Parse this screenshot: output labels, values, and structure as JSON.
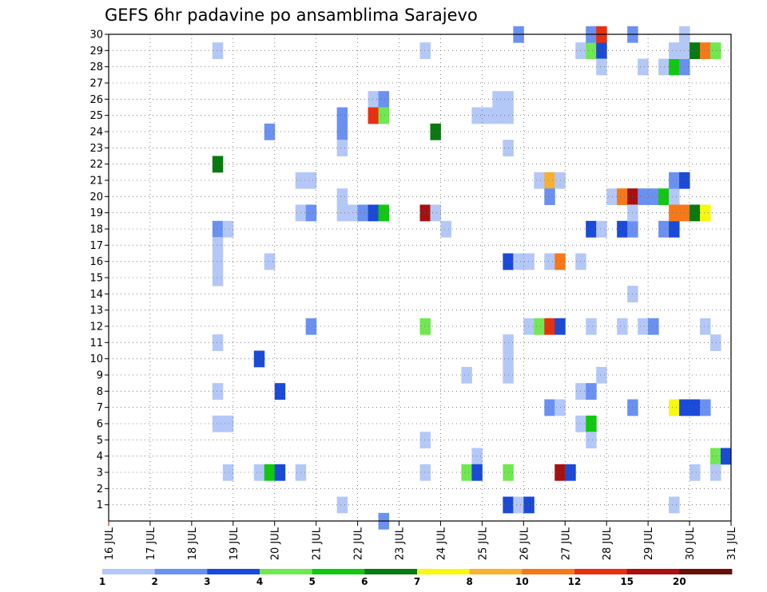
{
  "chart_data": {
    "type": "heatmap",
    "title": "GEFS 6hr padavine po ansamblima Sarajevo",
    "xlabel": "",
    "ylabel": "",
    "x_tick_labels": [
      "16 JUL",
      "17 JUL",
      "18 JUL",
      "19 JUL",
      "20 JUL",
      "21 JUL",
      "22 JUL",
      "23 JUL",
      "24 JUL",
      "25 JUL",
      "26 JUL",
      "27 JUL",
      "28 JUL",
      "29 JUL",
      "30 JUL",
      "31 JUL"
    ],
    "y_tick_labels": [
      "1",
      "2",
      "3",
      "4",
      "5",
      "6",
      "7",
      "8",
      "9",
      "10",
      "11",
      "12",
      "13",
      "14",
      "15",
      "16",
      "17",
      "18",
      "19",
      "20",
      "21",
      "22",
      "23",
      "24",
      "25",
      "26",
      "27",
      "28",
      "29",
      "30"
    ],
    "x_range_days": [
      0,
      15
    ],
    "y_range": [
      0,
      30
    ],
    "grid": true,
    "legend": "colorbar-bottom",
    "colorbar": {
      "labels": [
        "1",
        "2",
        "3",
        "4",
        "5",
        "6",
        "7",
        "8",
        "10",
        "12",
        "15",
        "20"
      ],
      "colors": [
        "#b4c8f8",
        "#6a91f2",
        "#1a4ad8",
        "#70e850",
        "#10c810",
        "#087a10",
        "#f8f810",
        "#f8b030",
        "#f87818",
        "#e83010",
        "#a81010",
        "#681008"
      ]
    },
    "cells": [
      [
        2.5,
        29,
        0
      ],
      [
        2.5,
        18,
        1
      ],
      [
        2.75,
        18,
        0
      ],
      [
        2.5,
        17,
        0
      ],
      [
        2.5,
        16,
        0
      ],
      [
        2.5,
        15,
        0
      ],
      [
        2.5,
        11,
        0
      ],
      [
        2.5,
        8,
        0
      ],
      [
        2.5,
        6,
        0
      ],
      [
        2.75,
        6,
        0
      ],
      [
        2.75,
        3,
        0
      ],
      [
        2.5,
        22,
        5
      ],
      [
        3.75,
        24,
        1
      ],
      [
        3.75,
        16,
        0
      ],
      [
        3.5,
        10,
        2
      ],
      [
        3.5,
        3,
        0
      ],
      [
        3.75,
        3,
        4
      ],
      [
        4.0,
        3,
        2
      ],
      [
        4.0,
        8,
        2
      ],
      [
        4.5,
        21,
        0
      ],
      [
        4.75,
        21,
        0
      ],
      [
        4.5,
        19,
        0
      ],
      [
        4.75,
        19,
        1
      ],
      [
        4.75,
        12,
        1
      ],
      [
        4.5,
        3,
        0
      ],
      [
        5.5,
        25,
        1
      ],
      [
        5.5,
        24,
        1
      ],
      [
        5.5,
        23,
        0
      ],
      [
        5.5,
        20,
        0
      ],
      [
        5.5,
        19,
        0
      ],
      [
        5.75,
        19,
        0
      ],
      [
        6.0,
        19,
        1
      ],
      [
        5.5,
        1,
        0
      ],
      [
        6.25,
        19,
        2
      ],
      [
        6.5,
        19,
        4
      ],
      [
        6.25,
        26,
        0
      ],
      [
        6.5,
        26,
        1
      ],
      [
        6.25,
        25,
        9
      ],
      [
        6.5,
        25,
        3
      ],
      [
        6.5,
        0,
        1
      ],
      [
        7.5,
        29,
        0
      ],
      [
        7.5,
        19,
        10
      ],
      [
        7.75,
        19,
        0
      ],
      [
        7.5,
        12,
        3
      ],
      [
        7.5,
        5,
        0
      ],
      [
        7.5,
        3,
        0
      ],
      [
        7.75,
        24,
        5
      ],
      [
        8.0,
        18,
        0
      ],
      [
        8.5,
        9,
        0
      ],
      [
        8.75,
        4,
        0
      ],
      [
        8.5,
        3,
        3
      ],
      [
        8.75,
        3,
        2
      ],
      [
        8.75,
        25,
        0
      ],
      [
        9.0,
        25,
        0
      ],
      [
        9.25,
        26,
        0
      ],
      [
        9.5,
        26,
        0
      ],
      [
        9.25,
        25,
        0
      ],
      [
        9.5,
        25,
        0
      ],
      [
        9.5,
        23,
        0
      ],
      [
        9.5,
        16,
        2
      ],
      [
        9.75,
        16,
        0
      ],
      [
        9.5,
        11,
        0
      ],
      [
        9.5,
        10,
        0
      ],
      [
        9.5,
        9,
        0
      ],
      [
        9.5,
        3,
        3
      ],
      [
        9.5,
        1,
        2
      ],
      [
        9.75,
        1,
        0
      ],
      [
        10.0,
        1,
        2
      ],
      [
        9.75,
        30,
        1
      ],
      [
        10.0,
        16,
        0
      ],
      [
        10.25,
        21,
        0
      ],
      [
        10.5,
        21,
        7
      ],
      [
        10.75,
        21,
        0
      ],
      [
        10.5,
        20,
        1
      ],
      [
        10.5,
        16,
        0
      ],
      [
        10.75,
        16,
        8
      ],
      [
        10.0,
        12,
        0
      ],
      [
        10.25,
        12,
        3
      ],
      [
        10.5,
        12,
        9
      ],
      [
        10.75,
        12,
        2
      ],
      [
        10.5,
        7,
        1
      ],
      [
        10.75,
        7,
        0
      ],
      [
        10.75,
        3,
        10
      ],
      [
        11.0,
        3,
        2
      ],
      [
        11.25,
        16,
        0
      ],
      [
        11.25,
        29,
        0
      ],
      [
        11.5,
        29,
        3
      ],
      [
        11.75,
        29,
        2
      ],
      [
        11.5,
        30,
        1
      ],
      [
        11.75,
        30,
        9
      ],
      [
        11.75,
        28,
        0
      ],
      [
        11.5,
        18,
        2
      ],
      [
        11.75,
        18,
        0
      ],
      [
        11.5,
        12,
        0
      ],
      [
        11.25,
        8,
        0
      ],
      [
        11.5,
        8,
        1
      ],
      [
        11.75,
        9,
        0
      ],
      [
        11.25,
        6,
        0
      ],
      [
        11.5,
        6,
        4
      ],
      [
        11.5,
        5,
        0
      ],
      [
        12.0,
        20,
        0
      ],
      [
        12.25,
        20,
        8
      ],
      [
        12.5,
        20,
        10
      ],
      [
        12.75,
        20,
        1
      ],
      [
        12.25,
        18,
        2
      ],
      [
        12.5,
        18,
        1
      ],
      [
        12.5,
        19,
        0
      ],
      [
        12.5,
        14,
        0
      ],
      [
        12.25,
        12,
        0
      ],
      [
        12.75,
        12,
        0
      ],
      [
        13.0,
        12,
        1
      ],
      [
        12.5,
        7,
        1
      ],
      [
        12.5,
        30,
        1
      ],
      [
        12.75,
        28,
        0
      ],
      [
        13.0,
        20,
        1
      ],
      [
        13.25,
        20,
        4
      ],
      [
        13.5,
        20,
        0
      ],
      [
        13.25,
        28,
        0
      ],
      [
        13.5,
        28,
        4
      ],
      [
        13.75,
        28,
        1
      ],
      [
        13.25,
        18,
        1
      ],
      [
        13.5,
        18,
        2
      ],
      [
        13.5,
        19,
        8
      ],
      [
        13.75,
        19,
        8
      ],
      [
        13.5,
        29,
        0
      ],
      [
        13.75,
        29,
        0
      ],
      [
        13.75,
        30,
        0
      ],
      [
        13.5,
        21,
        1
      ],
      [
        13.75,
        21,
        2
      ],
      [
        13.5,
        1,
        0
      ],
      [
        14.0,
        19,
        5
      ],
      [
        14.25,
        19,
        6
      ],
      [
        14.0,
        29,
        5
      ],
      [
        14.25,
        29,
        8
      ],
      [
        14.5,
        29,
        3
      ],
      [
        14.25,
        12,
        0
      ],
      [
        14.5,
        11,
        0
      ],
      [
        13.5,
        7,
        6
      ],
      [
        13.75,
        7,
        2
      ],
      [
        14.0,
        7,
        2
      ],
      [
        14.25,
        7,
        1
      ],
      [
        14.5,
        4,
        3
      ],
      [
        14.75,
        4,
        2
      ],
      [
        14.5,
        3,
        0
      ],
      [
        14.0,
        3,
        0
      ]
    ]
  }
}
